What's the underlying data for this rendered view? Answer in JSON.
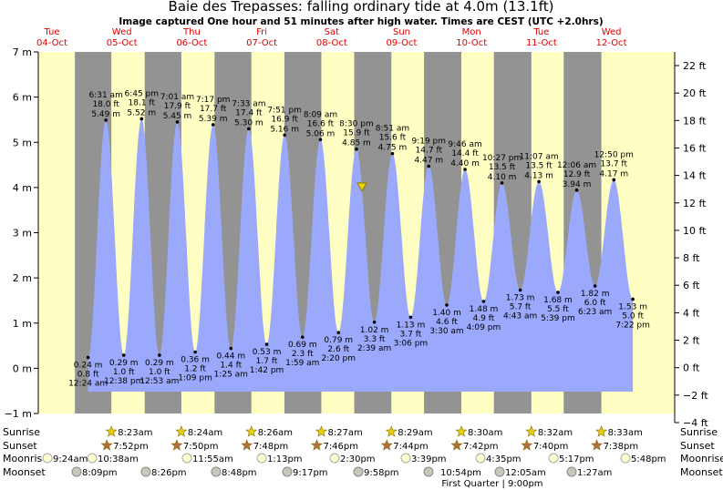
{
  "chart_data": {
    "type": "tide",
    "title": "Baie des Trepasses: falling  ordinary tide at 4.0m (13.1ft)",
    "subtitle": "Image captured One hour and 51 minutes after high water. Times are CEST (UTC +2.0hrs)",
    "current_height": 4.0,
    "days": [
      {
        "dow": "Tue",
        "date": "04-Oct"
      },
      {
        "dow": "Wed",
        "date": "05-Oct"
      },
      {
        "dow": "Thu",
        "date": "06-Oct"
      },
      {
        "dow": "Fri",
        "date": "07-Oct"
      },
      {
        "dow": "Sat",
        "date": "08-Oct"
      },
      {
        "dow": "Sun",
        "date": "09-Oct"
      },
      {
        "dow": "Mon",
        "date": "10-Oct"
      },
      {
        "dow": "Tue",
        "date": "11-Oct"
      },
      {
        "dow": "Wed",
        "date": "12-Oct"
      }
    ],
    "ylim": [
      -1,
      7
    ],
    "yticks": [
      {
        "value": -1,
        "label": "−1 m"
      },
      {
        "value": 0,
        "label": "0 m"
      },
      {
        "value": 1,
        "label": "1 m"
      },
      {
        "value": 2,
        "label": "2 m"
      },
      {
        "value": 3,
        "label": "3 m"
      },
      {
        "value": 4,
        "label": "4 m"
      },
      {
        "value": 5,
        "label": "5 m"
      },
      {
        "value": 6,
        "label": "6 m"
      },
      {
        "value": 7,
        "label": "7 m"
      }
    ],
    "y2lim": [
      -4,
      22
    ],
    "y2ticks": [
      {
        "value": -4,
        "label": "−4 ft"
      },
      {
        "value": -2,
        "label": "−2 ft"
      },
      {
        "value": 0,
        "label": "0 ft"
      },
      {
        "value": 2,
        "label": "2 ft"
      },
      {
        "value": 4,
        "label": "4 ft"
      },
      {
        "value": 6,
        "label": "6 ft"
      },
      {
        "value": 8,
        "label": "8 ft"
      },
      {
        "value": 10,
        "label": "10 ft"
      },
      {
        "value": 12,
        "label": "12 ft"
      },
      {
        "value": 14,
        "label": "14 ft"
      },
      {
        "value": 16,
        "label": "16 ft"
      },
      {
        "value": 18,
        "label": "18 ft"
      },
      {
        "value": 20,
        "label": "20 ft"
      },
      {
        "value": 22,
        "label": "22 ft"
      }
    ],
    "times": [
      "12:24 am",
      "6:31 am",
      "12:38 pm",
      "6:45 pm",
      "12:53 am",
      "7:01 am",
      "1:09 pm",
      "7:17 pm",
      "1:25 am",
      "7:33 am",
      "1:42 pm",
      "7:51 pm",
      "1:59 am",
      "8:09 am",
      "2:20 pm",
      "8:30 pm",
      "2:39 am",
      "8:51 am",
      "3:06 pm",
      "9:19 pm",
      "3:30 am",
      "9:46 am",
      "4:09 pm",
      "10:27 pm",
      "4:43 am",
      "11:07 am",
      "5:39 pm",
      "12:06 am",
      "6:23 am",
      "12:50 pm",
      "7:22 pm"
    ],
    "values": [
      0.24,
      5.49,
      0.29,
      5.52,
      0.29,
      5.45,
      0.36,
      5.39,
      0.44,
      5.3,
      0.53,
      5.16,
      0.69,
      5.06,
      0.79,
      4.85,
      1.02,
      4.75,
      1.13,
      4.47,
      1.4,
      4.4,
      1.48,
      4.1,
      1.73,
      4.13,
      1.68,
      3.94,
      1.82,
      4.17,
      1.53
    ],
    "value_labels": [
      "0.24 m",
      "5.49 m",
      "0.29 m",
      "5.52 m",
      "0.29 m",
      "5.45 m",
      "0.36 m",
      "5.39 m",
      "0.44 m",
      "5.30 m",
      "0.53 m",
      "5.16 m",
      "0.69 m",
      "5.06 m",
      "0.79 m",
      "4.85 m",
      "1.02 m",
      "4.75 m",
      "1.13 m",
      "4.47 m",
      "1.40 m",
      "4.40 m",
      "1.48 m",
      "4.10 m",
      "1.73 m",
      "4.13 m",
      "1.68 m",
      "3.94 m",
      "1.82 m",
      "4.17 m",
      "1.53 m"
    ],
    "feet_labels": [
      "0.8 ft",
      "18.0 ft",
      "1.0 ft",
      "18.1 ft",
      "1.0 ft",
      "17.9 ft",
      "1.2 ft",
      "17.7 ft",
      "1.4 ft",
      "17.4 ft",
      "1.7 ft",
      "16.9 ft",
      "2.3 ft",
      "16.6 ft",
      "2.6 ft",
      "15.9 ft",
      "3.3 ft",
      "15.6 ft",
      "3.7 ft",
      "14.7 ft",
      "4.6 ft",
      "14.4 ft",
      "4.9 ft",
      "13.5 ft",
      "5.7 ft",
      "13.5 ft",
      "5.5 ft",
      "12.9 ft",
      "6.0 ft",
      "13.7 ft",
      "5.0 ft"
    ],
    "sunrise": {
      "label": "Sunrise",
      "times": [
        "8:23am",
        "8:24am",
        "8:26am",
        "8:27am",
        "8:29am",
        "8:30am",
        "8:32am",
        "8:33am"
      ]
    },
    "sunset": {
      "label": "Sunset",
      "times": [
        "7:52pm",
        "7:50pm",
        "7:48pm",
        "7:46pm",
        "7:44pm",
        "7:42pm",
        "7:40pm",
        "7:38pm"
      ]
    },
    "moonrise": {
      "label": "Moonrise",
      "times": [
        "9:24am",
        "10:38am",
        "11:55am",
        "1:13pm",
        "2:30pm",
        "3:39pm",
        "4:35pm",
        "5:17pm",
        "5:48pm"
      ]
    },
    "moonset": {
      "label": "Moonset",
      "times": [
        "8:09pm",
        "8:26pm",
        "8:48pm",
        "9:17pm",
        "9:58pm",
        "10:54pm",
        "12:05am",
        "1:27am"
      ]
    },
    "moon_phase": "First Quarter | 9:00pm"
  }
}
